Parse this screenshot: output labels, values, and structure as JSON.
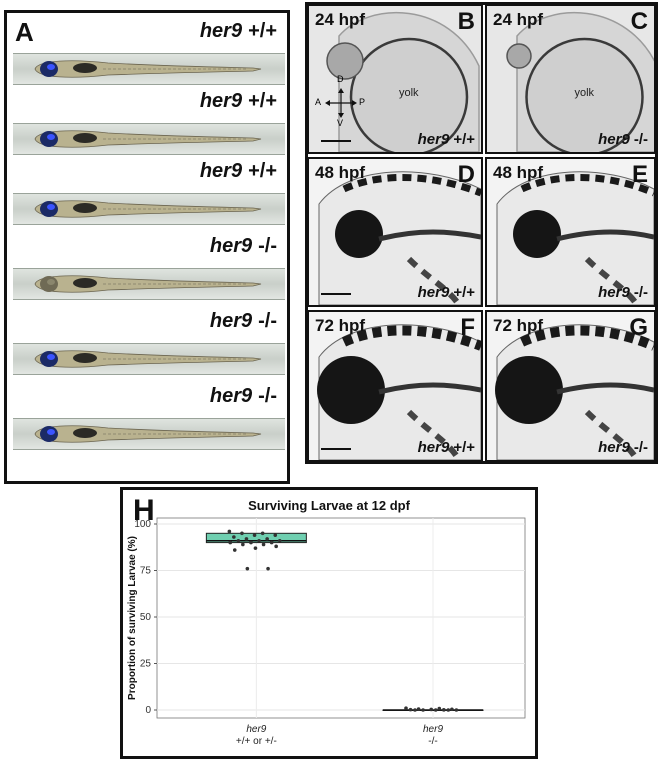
{
  "panel_a": {
    "letter": "A",
    "rows": [
      {
        "genotype": "her9",
        "suffix": "+/+"
      },
      {
        "genotype": "her9",
        "suffix": "+/+"
      },
      {
        "genotype": "her9",
        "suffix": "+/+"
      },
      {
        "genotype": "her9",
        "suffix": "-/-"
      },
      {
        "genotype": "her9",
        "suffix": "-/-"
      },
      {
        "genotype": "her9",
        "suffix": "-/-"
      }
    ]
  },
  "embryo_panels": [
    {
      "letter": "B",
      "stage": "24 hpf",
      "genotype": "her9",
      "suffix": "+/+",
      "yolk": "yolk"
    },
    {
      "letter": "C",
      "stage": "24 hpf",
      "genotype": "her9",
      "suffix": "-/-",
      "yolk": "yolk"
    },
    {
      "letter": "D",
      "stage": "48 hpf",
      "genotype": "her9",
      "suffix": "+/+"
    },
    {
      "letter": "E",
      "stage": "48 hpf",
      "genotype": "her9",
      "suffix": "-/-"
    },
    {
      "letter": "F",
      "stage": "72 hpf",
      "genotype": "her9",
      "suffix": "+/+"
    },
    {
      "letter": "G",
      "stage": "72 hpf",
      "genotype": "her9",
      "suffix": "-/-"
    }
  ],
  "axis_compass": {
    "d": "D",
    "v": "V",
    "a": "A",
    "p": "P"
  },
  "panel_h_letter": "H",
  "chart_data": {
    "type": "box",
    "title": "Surviving Larvae at 12 dpf",
    "xlabel": "",
    "ylabel": "Proportion of surviving Larvae (%)",
    "ylim": [
      0,
      100
    ],
    "yticks": [
      0,
      25,
      50,
      75,
      100
    ],
    "grid": true,
    "categories": [
      {
        "line1": "her9",
        "line2": "+/+ or +/-"
      },
      {
        "line1": "her9",
        "line2": "-/-"
      }
    ],
    "boxes": [
      {
        "q1": 90,
        "median": 91,
        "q3": 95,
        "whisker_low": 90,
        "whisker_high": 95,
        "color": "#6fcfb0"
      },
      {
        "q1": 0,
        "median": 0,
        "q3": 0,
        "whisker_low": 0,
        "whisker_high": 0,
        "color": "#6fcfb0"
      }
    ],
    "points": [
      [
        96,
        95,
        95,
        94,
        94,
        93,
        92,
        92,
        91,
        91,
        91,
        90,
        90,
        90,
        89,
        89,
        88,
        87,
        86,
        76,
        76
      ],
      [
        1,
        0.8,
        0.5,
        0.4,
        0.3,
        0.2,
        0.1,
        0,
        0,
        0,
        0,
        0
      ]
    ]
  }
}
